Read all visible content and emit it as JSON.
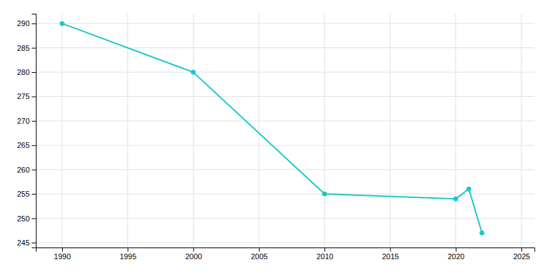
{
  "chart_data": {
    "type": "line",
    "x": [
      1990,
      2000,
      2010,
      2020,
      2021,
      2022
    ],
    "values": [
      290,
      280,
      255,
      254,
      256,
      247
    ],
    "color": "#1AC8C8",
    "marker": "circle",
    "xlim": [
      1988,
      2026
    ],
    "ylim": [
      244,
      292
    ],
    "xticks": [
      1990,
      1995,
      2000,
      2005,
      2010,
      2015,
      2020,
      2025
    ],
    "yticks": [
      245,
      250,
      255,
      260,
      265,
      270,
      275,
      280,
      285,
      290
    ],
    "grid": true
  }
}
